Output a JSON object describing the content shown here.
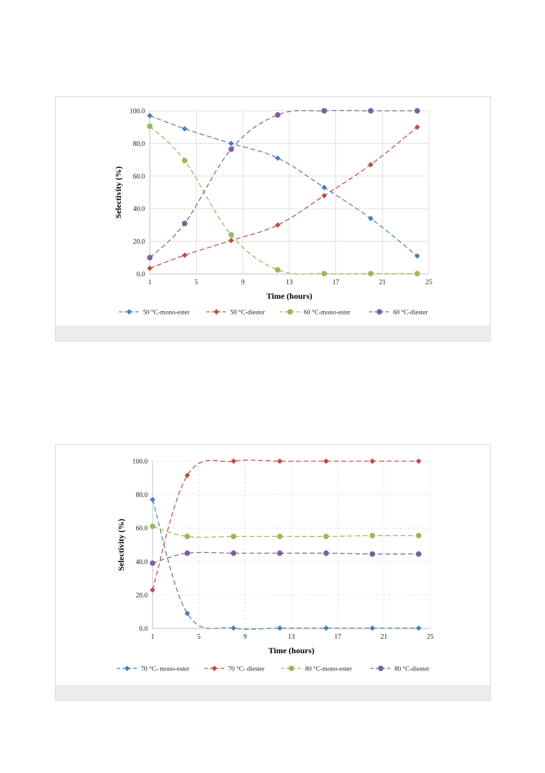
{
  "chart_data": [
    {
      "type": "line",
      "title": "",
      "xlabel": "Time (hours)",
      "ylabel": "Selectivity (%)",
      "xlim": [
        1,
        25
      ],
      "ylim": [
        0,
        100
      ],
      "xticks": [
        1,
        5,
        9,
        13,
        17,
        21,
        25
      ],
      "yticks": [
        0,
        20,
        40,
        60,
        80,
        100
      ],
      "tick_labels_y": [
        "0.0",
        "20.0",
        "40.0",
        "60.0",
        "80.0",
        "100.0"
      ],
      "grid": true,
      "legend_position": "bottom",
      "x": [
        1,
        4,
        8,
        12,
        16,
        20,
        24
      ],
      "series": [
        {
          "name": "50 °C-mono-ester",
          "marker": "diamond",
          "color": "#4a7ebb",
          "values": [
            97,
            89,
            80,
            71,
            53,
            34,
            11
          ]
        },
        {
          "name": "50 °C-diester",
          "marker": "diamond",
          "color": "#be4b48",
          "values": [
            3.5,
            11.5,
            20.5,
            30,
            48,
            67,
            90
          ]
        },
        {
          "name": "60 °C-mono-ester",
          "marker": "circle",
          "color": "#98b954",
          "values": [
            90.5,
            69.5,
            24,
            2.5,
            0.2,
            0.2,
            0.2
          ]
        },
        {
          "name": "60 °C-diester",
          "marker": "circle",
          "color": "#7d5fa0",
          "values": [
            10,
            31,
            76.5,
            97.5,
            100,
            100,
            100
          ]
        }
      ]
    },
    {
      "type": "line",
      "title": "",
      "xlabel": "Time (hours)",
      "ylabel": "Selectivity  (%)",
      "xlim": [
        1,
        25
      ],
      "ylim": [
        0,
        100
      ],
      "xticks": [
        1,
        5,
        9,
        13,
        17,
        21,
        25
      ],
      "yticks": [
        0,
        20,
        40,
        60,
        80,
        100
      ],
      "tick_labels_y": [
        "0.0",
        "20.0",
        "40.0",
        "60.0",
        "80.0",
        "100.0"
      ],
      "grid": true,
      "legend_position": "bottom",
      "x": [
        1,
        4,
        8,
        12,
        16,
        20,
        24
      ],
      "series": [
        {
          "name": "70 °C- mono-ester",
          "marker": "diamond",
          "color": "#4a7ebb",
          "values": [
            77,
            9,
            0.2,
            0.2,
            0.2,
            0.2,
            0.2
          ]
        },
        {
          "name": "70 °C- diester",
          "marker": "diamond",
          "color": "#be4b48",
          "values": [
            23,
            91.5,
            100,
            100,
            100,
            100,
            100
          ]
        },
        {
          "name": "80 °C-mono-ester",
          "marker": "circle",
          "color": "#98b954",
          "values": [
            61,
            55,
            55,
            55,
            55,
            55.5,
            55.5
          ]
        },
        {
          "name": "80 °C-diester",
          "marker": "circle",
          "color": "#7d5fa0",
          "values": [
            39,
            45,
            45,
            45,
            45,
            44.5,
            44.5
          ]
        }
      ]
    }
  ]
}
